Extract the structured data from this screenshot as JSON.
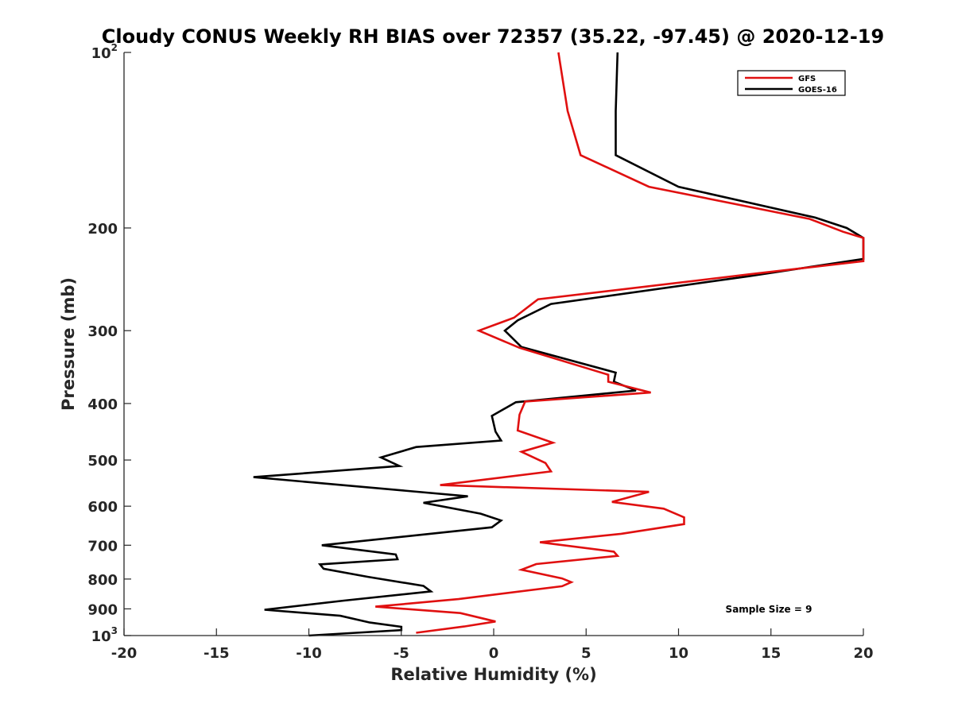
{
  "chart_data": {
    "type": "line",
    "title": "Cloudy CONUS Weekly RH BIAS over 72357 (35.22, -97.45) @ 2020-12-19",
    "xlabel": "Relative Humidity (%)",
    "ylabel": "Pressure (mb)",
    "xlim": [
      -20,
      20
    ],
    "ylim": [
      100,
      1000
    ],
    "y_scale": "log",
    "y_reversed": true,
    "x_ticks": [
      "-20",
      "-15",
      "-10",
      "-5",
      "0",
      "5",
      "10",
      "15",
      "20"
    ],
    "y_ticks": [
      {
        "value": 100,
        "base": "10",
        "exp": "2"
      },
      {
        "value": 200,
        "label": "200"
      },
      {
        "value": 300,
        "label": "300"
      },
      {
        "value": 400,
        "label": "400"
      },
      {
        "value": 500,
        "label": "500"
      },
      {
        "value": 600,
        "label": "600"
      },
      {
        "value": 700,
        "label": "700"
      },
      {
        "value": 800,
        "label": "800"
      },
      {
        "value": 900,
        "label": "900"
      },
      {
        "value": 1000,
        "base": "10",
        "exp": "3"
      }
    ],
    "grid": false,
    "legend_position": "top-right",
    "series": [
      {
        "name": "GFS",
        "color": "#e01010",
        "points": [
          [
            3.5,
            100
          ],
          [
            4.0,
            126
          ],
          [
            4.7,
            150
          ],
          [
            8.4,
            170
          ],
          [
            17.1,
            193
          ],
          [
            18.9,
            203
          ],
          [
            20.0,
            208
          ],
          [
            20.0,
            228
          ],
          [
            13.9,
            240
          ],
          [
            2.4,
            265
          ],
          [
            1.1,
            285
          ],
          [
            -0.8,
            300
          ],
          [
            1.4,
            321
          ],
          [
            6.2,
            357
          ],
          [
            6.2,
            367
          ],
          [
            8.5,
            383
          ],
          [
            1.7,
            397
          ],
          [
            1.4,
            418
          ],
          [
            1.3,
            445
          ],
          [
            3.2,
            467
          ],
          [
            1.5,
            484
          ],
          [
            2.8,
            506
          ],
          [
            3.1,
            523
          ],
          [
            -2.9,
            552
          ],
          [
            8.4,
            567
          ],
          [
            6.4,
            590
          ],
          [
            9.2,
            606
          ],
          [
            10.3,
            627
          ],
          [
            10.3,
            644
          ],
          [
            6.9,
            669
          ],
          [
            2.5,
            692
          ],
          [
            6.5,
            718
          ],
          [
            6.7,
            730
          ],
          [
            2.3,
            754
          ],
          [
            1.5,
            771
          ],
          [
            3.7,
            798
          ],
          [
            4.2,
            810
          ],
          [
            3.7,
            823
          ],
          [
            -1.9,
            866
          ],
          [
            -6.4,
            892
          ],
          [
            -1.8,
            915
          ],
          [
            0.1,
            946
          ],
          [
            -1.6,
            965
          ],
          [
            -4.2,
            989
          ]
        ]
      },
      {
        "name": "GOES-16",
        "color": "#000000",
        "points": [
          [
            6.7,
            100
          ],
          [
            6.6,
            126
          ],
          [
            6.6,
            150
          ],
          [
            10.0,
            170
          ],
          [
            17.4,
            192
          ],
          [
            19.1,
            200
          ],
          [
            20.0,
            208
          ],
          [
            20.0,
            226
          ],
          [
            13.8,
            242
          ],
          [
            3.1,
            270
          ],
          [
            1.3,
            288
          ],
          [
            0.6,
            300
          ],
          [
            1.5,
            320
          ],
          [
            6.6,
            354
          ],
          [
            6.5,
            367
          ],
          [
            7.7,
            380
          ],
          [
            1.2,
            398
          ],
          [
            -0.1,
            420
          ],
          [
            0.1,
            447
          ],
          [
            0.4,
            463
          ],
          [
            -4.2,
            475
          ],
          [
            -6.1,
            495
          ],
          [
            -5.1,
            512
          ],
          [
            -13.0,
            535
          ],
          [
            -1.4,
            577
          ],
          [
            -3.8,
            592
          ],
          [
            -0.7,
            618
          ],
          [
            0.4,
            635
          ],
          [
            -0.1,
            652
          ],
          [
            -9.3,
            700
          ],
          [
            -5.3,
            726
          ],
          [
            -5.2,
            740
          ],
          [
            -9.4,
            755
          ],
          [
            -9.2,
            768
          ],
          [
            -6.8,
            793
          ],
          [
            -3.8,
            822
          ],
          [
            -3.4,
            840
          ],
          [
            -8.1,
            871
          ],
          [
            -12.4,
            903
          ],
          [
            -8.3,
            925
          ],
          [
            -6.7,
            950
          ],
          [
            -5.0,
            966
          ],
          [
            -5.0,
            979
          ],
          [
            -10.0,
            1000
          ]
        ]
      }
    ],
    "annotation": "Sample Size = 9"
  }
}
